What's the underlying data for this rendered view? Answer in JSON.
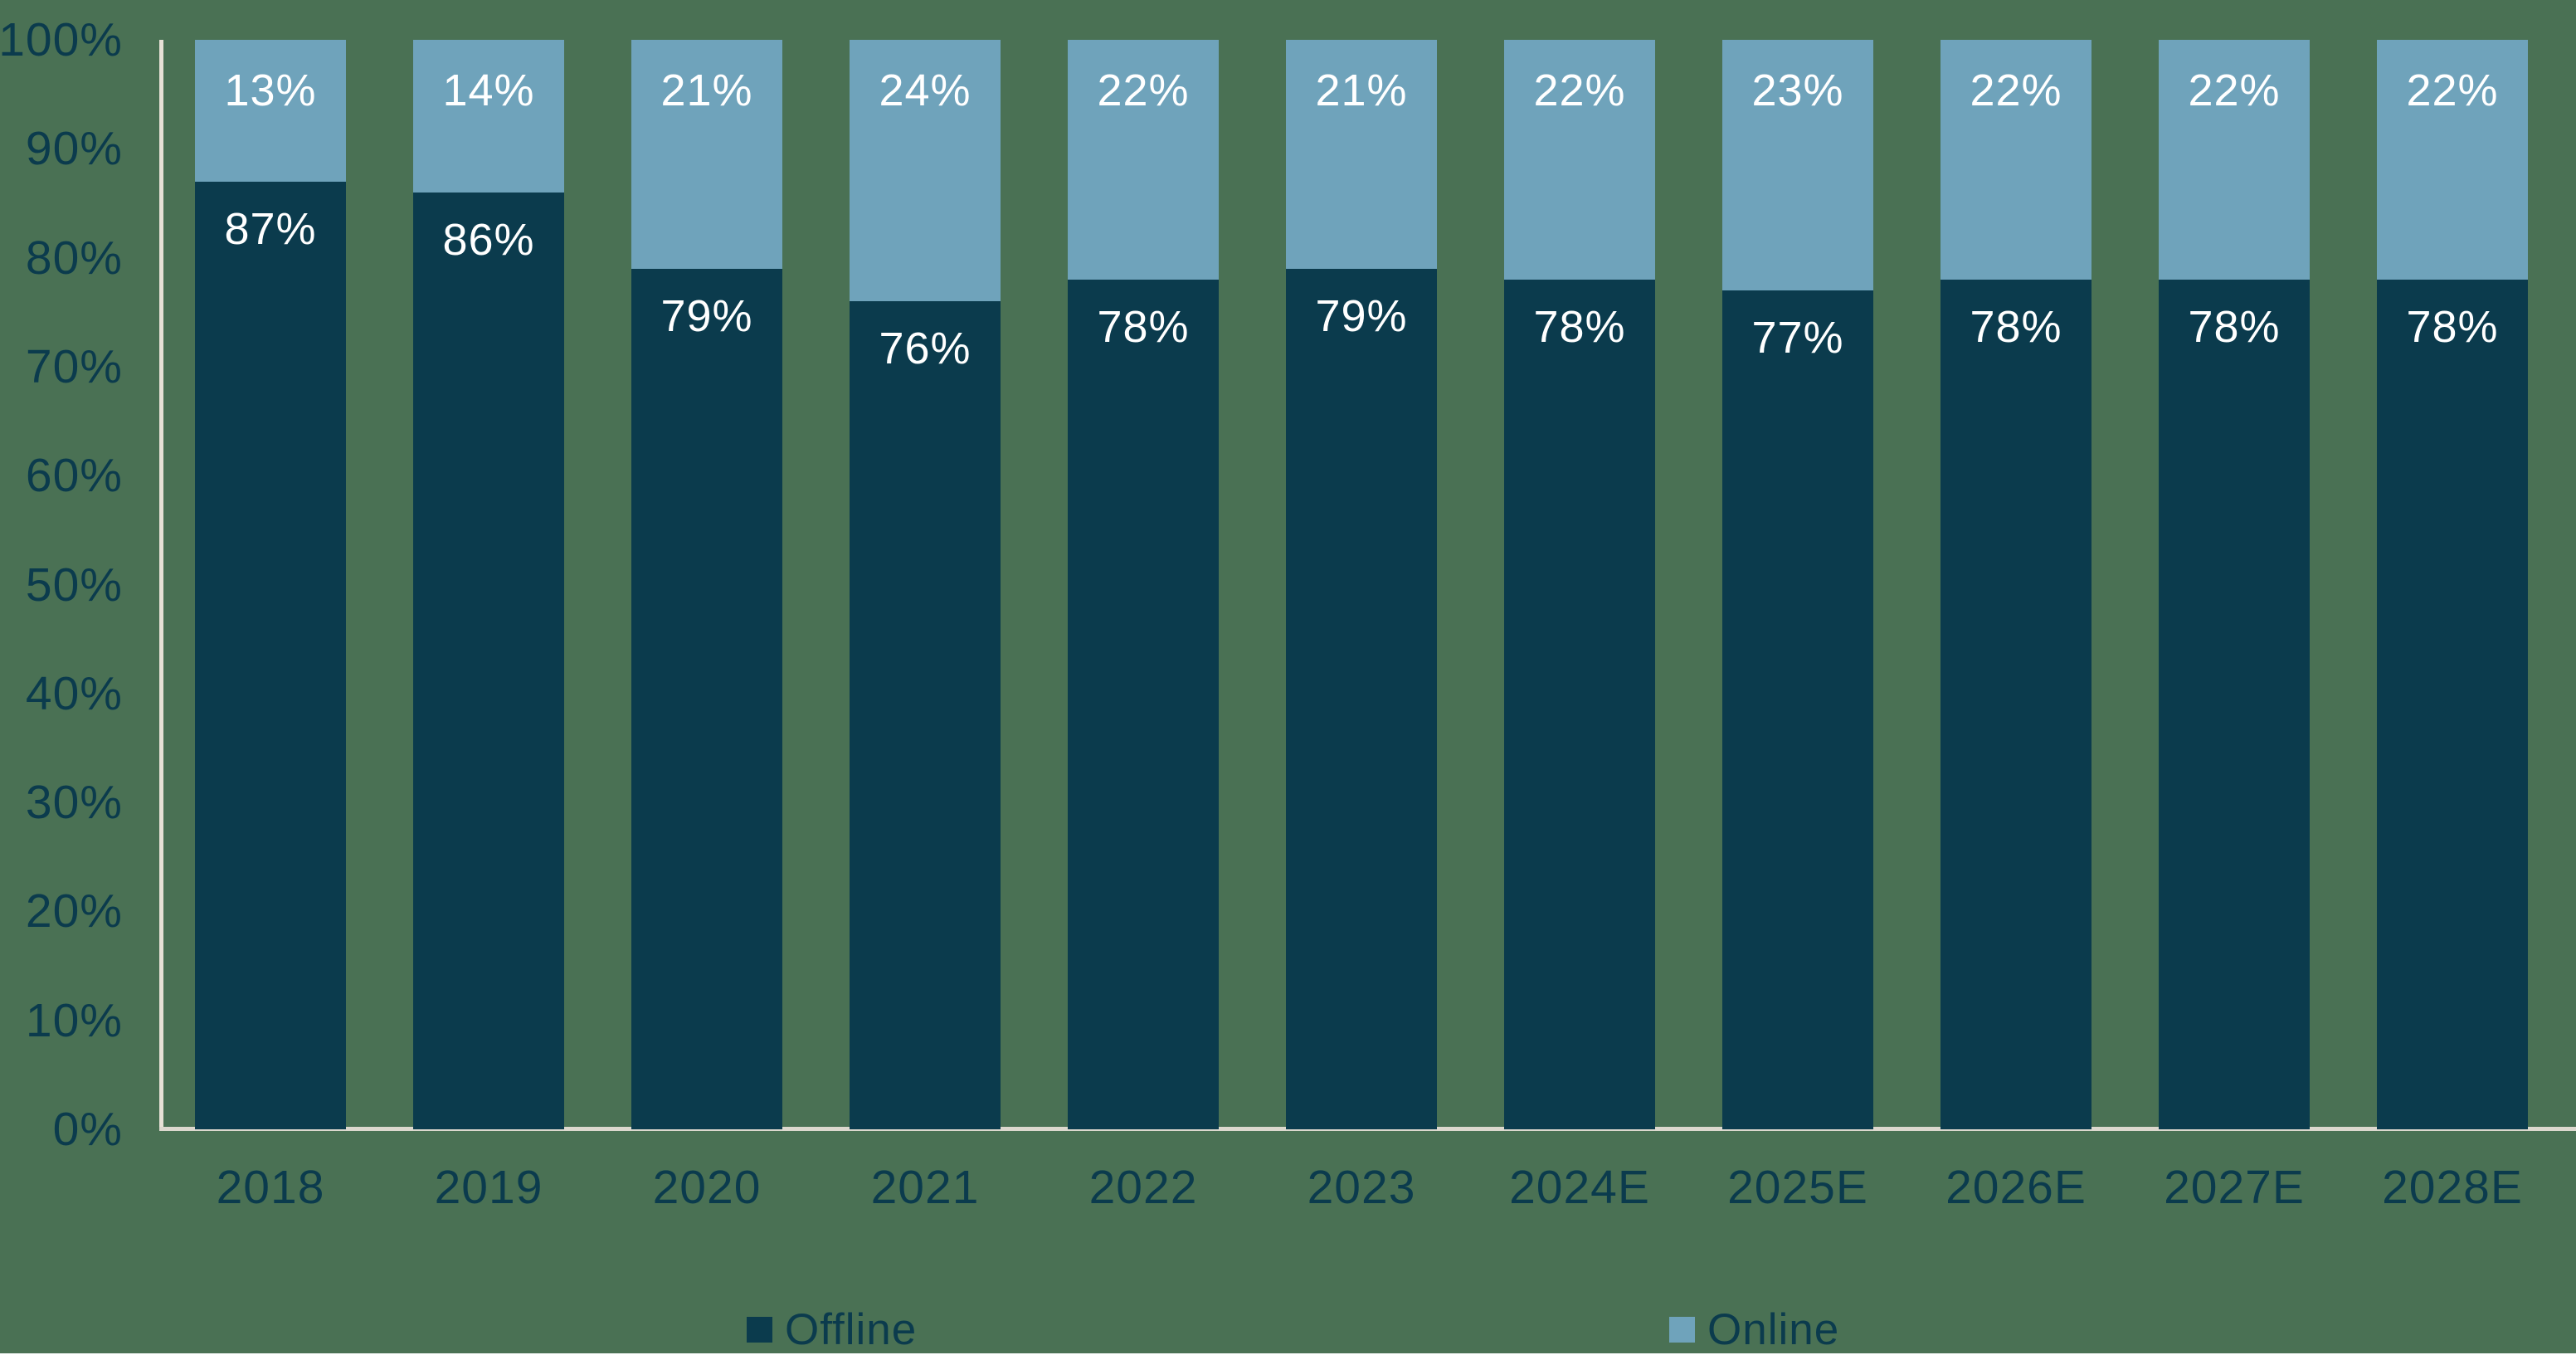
{
  "chart_data": {
    "type": "bar",
    "stacked": true,
    "orientation": "vertical",
    "categories": [
      "2018",
      "2019",
      "2020",
      "2021",
      "2022",
      "2023",
      "2024E",
      "2025E",
      "2026E",
      "2027E",
      "2028E"
    ],
    "series": [
      {
        "name": "Offline",
        "color": "#0B3B4D",
        "values": [
          87,
          86,
          79,
          76,
          78,
          79,
          78,
          77,
          78,
          78,
          78
        ]
      },
      {
        "name": "Online",
        "color": "#6FA3BB",
        "values": [
          13,
          14,
          21,
          24,
          22,
          21,
          22,
          23,
          22,
          22,
          22
        ]
      }
    ],
    "value_label_suffix": "%",
    "value_label_color": "#FFFFFF",
    "y_ticks": [
      "0%",
      "10%",
      "20%",
      "30%",
      "40%",
      "50%",
      "60%",
      "70%",
      "80%",
      "90%",
      "100%"
    ],
    "ylim": [
      0,
      100
    ],
    "grid": false,
    "legend_position": "bottom"
  },
  "colors": {
    "background": "#4A7154",
    "offline_bar": "#0B3B4D",
    "online_bar": "#6FA3BB",
    "axis_line_vertical": "#E7E1D6",
    "axis_line_horizontal": "#DCD8CE",
    "tick_label": "#0B3B4D"
  }
}
